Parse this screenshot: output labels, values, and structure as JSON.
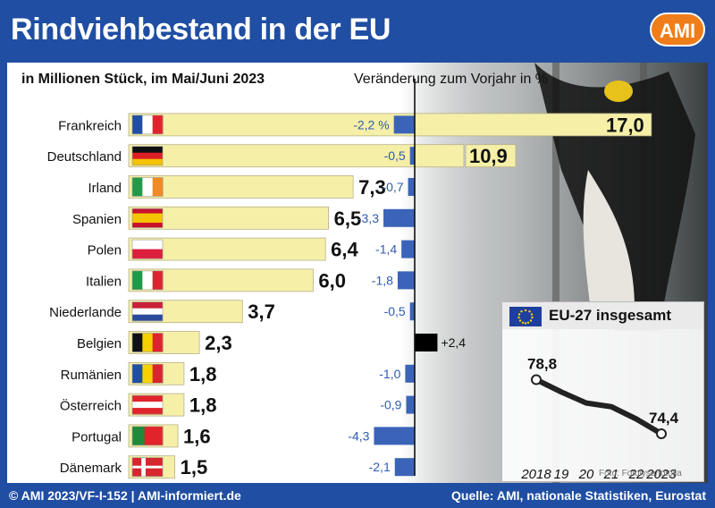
{
  "header": {
    "title": "Rindviehbestand in der EU",
    "logo_text": "AMI"
  },
  "subtitle": "in Millionen Stück, im Mai/Juni 2023",
  "change_label": "Veränderung zum Vorjahr in %",
  "colors": {
    "background": "#1f4ea3",
    "bar_fill": "#f5efa8",
    "change_negative": "#3b64b8",
    "change_positive": "#000000",
    "accent": "#ef7d1a"
  },
  "chart_data": [
    {
      "type": "bar",
      "orientation": "horizontal",
      "categories": [
        "Frankreich",
        "Deutschland",
        "Irland",
        "Spanien",
        "Polen",
        "Italien",
        "Niederlande",
        "Belgien",
        "Rumänien",
        "Österreich",
        "Portugal",
        "Dänemark"
      ],
      "value_labels": [
        "17,0",
        "10,9",
        "7,3",
        "6,5",
        "6,4",
        "6,0",
        "3,7",
        "2,3",
        "1,8",
        "1,8",
        "1,6",
        "1,5"
      ],
      "change_labels": [
        "-2,2 %",
        "-0,5",
        "-0,7",
        "-3,3",
        "-1,4",
        "-1,8",
        "-0,5",
        "+2,4",
        "-1,0",
        "-0,9",
        "-4,3",
        "-2,1"
      ],
      "series": [
        {
          "values": [
            17.0,
            10.9,
            7.3,
            6.5,
            6.4,
            6.0,
            3.7,
            2.3,
            1.8,
            1.8,
            1.6,
            1.5
          ]
        },
        {
          "values": [
            -2.2,
            -0.5,
            -0.7,
            -3.3,
            -1.4,
            -1.8,
            -0.5,
            2.4,
            -1.0,
            -0.9,
            -4.3,
            -2.1
          ]
        }
      ],
      "flags": [
        "france",
        "germany",
        "ireland",
        "spain",
        "poland",
        "italy",
        "netherlands",
        "belgium",
        "romania",
        "austria",
        "portugal",
        "denmark"
      ]
    },
    {
      "type": "line",
      "title": "EU-27 insgesamt",
      "x": [
        "2018",
        "19",
        "20",
        "21",
        "22",
        "2023"
      ],
      "y": [
        78.8,
        77.8,
        76.9,
        76.6,
        75.6,
        74.4
      ],
      "point_labels": [
        {
          "index": 0,
          "text": "78,8"
        },
        {
          "index": 5,
          "text": "74,4"
        }
      ]
    }
  ],
  "photo_credit": "Foto: Fotolyse/fotolia",
  "footer": {
    "left": "© AMI 2023/VF-I-152 | AMI-informiert.de",
    "right": "Quelle: AMI, nationale Statistiken, Eurostat"
  }
}
